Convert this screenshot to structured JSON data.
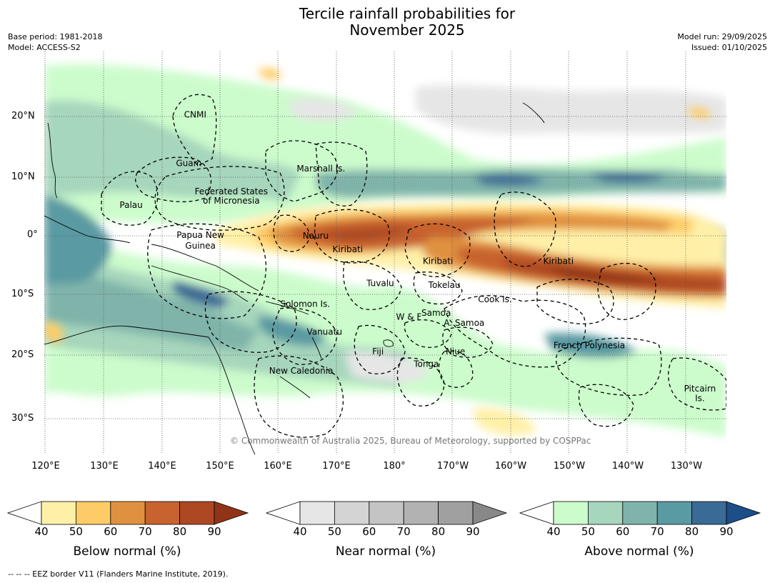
{
  "title_line1": "Tercile rainfall probabilities for",
  "title_line2": "November 2025",
  "meta_left": [
    "Base period: 1981-2018",
    "Model: ACCESS-S2"
  ],
  "meta_right": [
    "Model run: 29/09/2025",
    "Issued: 01/10/2025"
  ],
  "copyright": "© Commonwealth of Australia 2025, Bureau of Meteorology, supported by COSPPac",
  "lat_ticks": [
    "20°N",
    "10°N",
    "0°",
    "10°S",
    "20°S",
    "30°S"
  ],
  "lon_ticks": [
    "120°E",
    "130°E",
    "140°E",
    "150°E",
    "160°E",
    "170°E",
    "180°",
    "170°W",
    "160°W",
    "150°W",
    "140°W",
    "130°W"
  ],
  "regions": [
    {
      "name": "CNMI",
      "lon": 145.8,
      "lat": 20.4
    },
    {
      "name": "Guam",
      "lon": 144.7,
      "lat": 12.2
    },
    {
      "name": "Marshall Is.",
      "lon": 167.4,
      "lat": 11.3
    },
    {
      "name": "Federated States",
      "lon": 152.0,
      "lat": 7.5
    },
    {
      "name": "of Micronesia",
      "lon": 152.0,
      "lat": 5.9
    },
    {
      "name": "Palau",
      "lon": 134.8,
      "lat": 5.2
    },
    {
      "name": "Papua New",
      "lon": 146.7,
      "lat": 0.1
    },
    {
      "name": "Guinea",
      "lon": 146.7,
      "lat": -1.7
    },
    {
      "name": "Nauru",
      "lon": 166.5,
      "lat": 0.0
    },
    {
      "name": "Kiribati",
      "lon": 172.0,
      "lat": -2.3
    },
    {
      "name": "Kiribati",
      "lon": -172.5,
      "lat": -4.3
    },
    {
      "name": "Kiribati",
      "lon": -151.8,
      "lat": -4.3
    },
    {
      "name": "Tuvalu",
      "lon": 177.6,
      "lat": -8.0
    },
    {
      "name": "Tokelau",
      "lon": -171.4,
      "lat": -8.3
    },
    {
      "name": "Cook Is.",
      "lon": -162.7,
      "lat": -10.7
    },
    {
      "name": "Solomon Is.",
      "lon": 164.7,
      "lat": -11.5
    },
    {
      "name": "Samoa",
      "lon": -172.8,
      "lat": -13.0
    },
    {
      "name": "W & F",
      "lon": -177.5,
      "lat": -13.7
    },
    {
      "name": "A. Samoa",
      "lon": -168.0,
      "lat": -14.7
    },
    {
      "name": "Vanuatu",
      "lon": 168.0,
      "lat": -16.2
    },
    {
      "name": "French Polynesia",
      "lon": -146.5,
      "lat": -18.5
    },
    {
      "name": "Fiji",
      "lon": 177.2,
      "lat": -19.5
    },
    {
      "name": "Niue",
      "lon": -169.5,
      "lat": -19.5
    },
    {
      "name": "Tonga",
      "lon": -174.5,
      "lat": -21.6
    },
    {
      "name": "New Caledonia",
      "lon": 164.0,
      "lat": -22.8
    },
    {
      "name": "Pitcairn",
      "lon": -127.5,
      "lat": -25.8
    },
    {
      "name": "Is.",
      "lon": -127.5,
      "lat": -27.4
    }
  ],
  "colorbars": [
    {
      "label": "Below normal (%)",
      "ticks": [
        "40",
        "50",
        "60",
        "70",
        "80",
        "90"
      ],
      "colors": [
        "#fff0a8",
        "#fecc66",
        "#e0913f",
        "#c8622e",
        "#ad4823"
      ],
      "extend": "#903418"
    },
    {
      "label": "Near normal (%)",
      "ticks": [
        "40",
        "50",
        "60",
        "70",
        "80",
        "90"
      ],
      "colors": [
        "#e6e6e6",
        "#d4d4d4",
        "#c4c4c4",
        "#b2b2b2",
        "#a0a0a0"
      ],
      "extend": "#888888"
    },
    {
      "label": "Above normal (%)",
      "ticks": [
        "40",
        "50",
        "60",
        "70",
        "80",
        "90"
      ],
      "colors": [
        "#ccfccc",
        "#a6d6bc",
        "#80b4aa",
        "#5a9aa2",
        "#3a6a96"
      ],
      "extend": "#1c4e88"
    }
  ],
  "footnote": "--  --  -- EEZ border V11 (Flanders Marine Institute, 2019)."
}
